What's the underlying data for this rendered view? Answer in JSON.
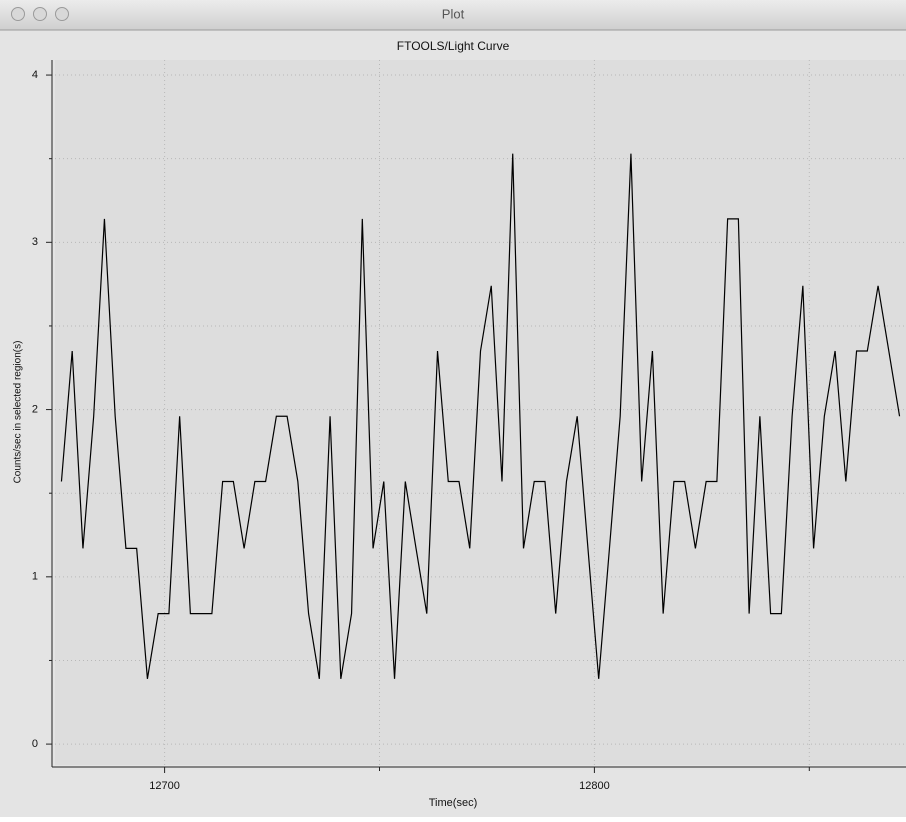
{
  "window": {
    "title": "Plot"
  },
  "chart_data": {
    "type": "line",
    "title": "FTOOLS/Light Curve",
    "x_label": "Time(sec)",
    "y_label": "Counts/sec in selected region(s)",
    "x": [
      12676,
      12678.5,
      12681,
      12683.5,
      12686,
      12688.5,
      12691,
      12693.5,
      12696,
      12698.5,
      12701,
      12703.5,
      12706,
      12708.5,
      12711,
      12713.5,
      12716,
      12718.5,
      12721,
      12723.5,
      12726,
      12728.5,
      12731,
      12733.5,
      12736,
      12738.5,
      12741,
      12743.5,
      12746,
      12748.5,
      12751,
      12753.5,
      12756,
      12758.5,
      12761,
      12763.5,
      12766,
      12768.5,
      12771,
      12773.5,
      12776,
      12778.5,
      12781,
      12783.5,
      12786,
      12788.5,
      12791,
      12793.5,
      12796,
      12798.5,
      12801,
      12803.5,
      12806,
      12808.5,
      12811,
      12813.5,
      12816,
      12818.5,
      12821,
      12823.5,
      12826,
      12828.5,
      12831,
      12833.5,
      12836,
      12838.5,
      12841,
      12843.5,
      12846,
      12848.5,
      12851,
      12853.5,
      12856,
      12858.5,
      12861,
      12863.5,
      12866,
      12868.5,
      12871
    ],
    "values": [
      1.57,
      2.35,
      1.17,
      1.96,
      3.14,
      1.96,
      1.17,
      1.17,
      0.39,
      0.78,
      0.78,
      1.96,
      0.78,
      0.78,
      0.78,
      1.57,
      1.57,
      1.17,
      1.57,
      1.57,
      1.96,
      1.96,
      1.57,
      0.78,
      0.39,
      1.96,
      0.39,
      0.78,
      3.14,
      1.17,
      1.57,
      0.39,
      1.57,
      1.17,
      0.78,
      2.35,
      1.57,
      1.57,
      1.17,
      2.35,
      2.74,
      1.57,
      3.53,
      1.17,
      1.57,
      1.57,
      0.78,
      1.57,
      1.96,
      1.17,
      0.39,
      1.17,
      1.96,
      3.53,
      1.57,
      2.35,
      0.78,
      1.57,
      1.57,
      1.17,
      1.57,
      1.57,
      3.14,
      3.14,
      0.78,
      1.96,
      0.78,
      0.78,
      1.96,
      2.74,
      1.17,
      1.96,
      2.35,
      1.57,
      2.35,
      2.35,
      2.74,
      2.35,
      1.96
    ],
    "color": "#000000",
    "xlim": [
      12674.5,
      12872.5
    ],
    "ylim": [
      -0.125,
      4.09
    ],
    "xticks": [
      12700,
      12800
    ],
    "x_minor_ticks": [
      12750,
      12850
    ],
    "yticks": [
      0,
      1,
      2,
      3,
      4
    ],
    "y_minor_ticks": [
      0.5,
      1.5,
      2.5,
      3.5
    ],
    "grid": true
  }
}
